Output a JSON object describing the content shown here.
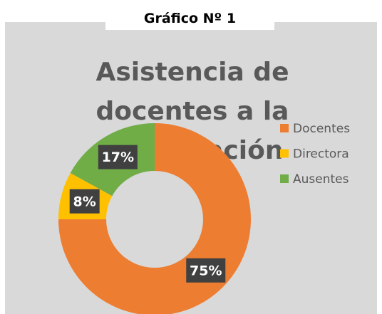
{
  "header": {
    "title": "Gráfico Nº 1"
  },
  "chart_data": {
    "type": "donut",
    "title": "Asistencia de docentes a la capacitación",
    "categories": [
      "Docentes",
      "Directora",
      "Ausentes"
    ],
    "values": [
      75,
      8,
      17
    ],
    "value_labels": [
      "75%",
      "8%",
      "17%"
    ],
    "colors": [
      "#ed7d31",
      "#ffc000",
      "#70ad47"
    ],
    "legend": "right"
  }
}
